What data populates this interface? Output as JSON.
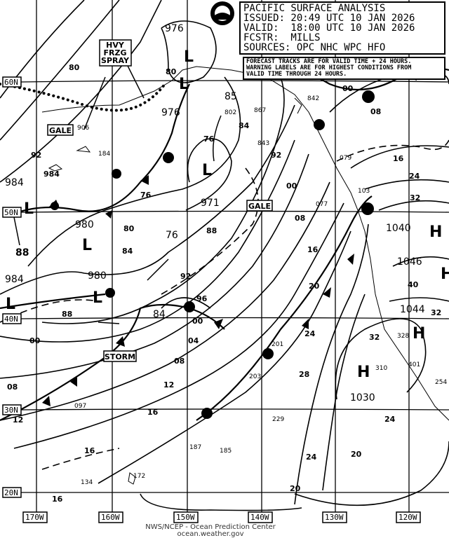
{
  "header": {
    "title": "PACIFIC SURFACE ANALYSIS",
    "issued": "ISSUED: 20:49 UTC 10 JAN 2026",
    "valid": "VALID:  18:00 UTC 10 JAN 2026",
    "forecaster": "FCSTR:  MILLS",
    "sources": "SOURCES: OPC NHC WPC HFO"
  },
  "note": {
    "line1": "FORECAST TRACKS ARE FOR VALID TIME + 24 HOURS.",
    "line2": "WARNING LABELS ARE FOR HIGHEST CONDITIONS FROM",
    "line3": "VALID TIME THROUGH 24 HOURS."
  },
  "logo": "NOAA",
  "latitudes": [
    "60N",
    "50N",
    "40N",
    "30N",
    "20N"
  ],
  "longitudes": [
    "170W",
    "160W",
    "150W",
    "140W",
    "130W",
    "120W"
  ],
  "warnings": {
    "hvy_frzg_spray": [
      "HVY",
      "FRZG",
      "SPRAY"
    ],
    "gale_1": "GALE",
    "gale_2": "GALE",
    "storm": "STORM"
  },
  "centers": [
    {
      "type": "L",
      "pressure": "976"
    },
    {
      "type": "L",
      "pressure": "976"
    },
    {
      "type": "L",
      "pressure": "971"
    },
    {
      "type": "L",
      "pressure": "984"
    },
    {
      "type": "L",
      "pressure": "980"
    },
    {
      "type": "L",
      "pressure": "980"
    },
    {
      "type": "L",
      "pressure": "984"
    },
    {
      "type": "H",
      "pressure": "1040"
    },
    {
      "type": "H",
      "pressure": "1046"
    },
    {
      "type": "H",
      "pressure": "1044"
    },
    {
      "type": "H",
      "pressure": "1030"
    }
  ],
  "misc_values": [
    "85",
    "88",
    "76",
    "84",
    "80"
  ],
  "isobar_labels": [
    "92",
    "984",
    "00",
    "08",
    "12",
    "16",
    "76",
    "80",
    "84",
    "88",
    "92",
    "96",
    "00",
    "04",
    "08",
    "12",
    "16",
    "20",
    "24",
    "28",
    "32",
    "24",
    "20",
    "16",
    "84",
    "76",
    "92",
    "00",
    "08",
    "16",
    "24",
    "32",
    "40",
    "32",
    "24",
    "20",
    "16",
    "08",
    "00",
    "88",
    "80"
  ],
  "stations": [
    "906",
    "184",
    "802",
    "867",
    "843",
    "842",
    "079",
    "077",
    "103",
    "201",
    "203",
    "229",
    "187",
    "185",
    "172",
    "134",
    "097",
    "310",
    "328",
    "401",
    "254"
  ],
  "credit": {
    "line1": "NWS/NCEP - Ocean Prediction Center",
    "line2": "ocean.weather.gov"
  }
}
